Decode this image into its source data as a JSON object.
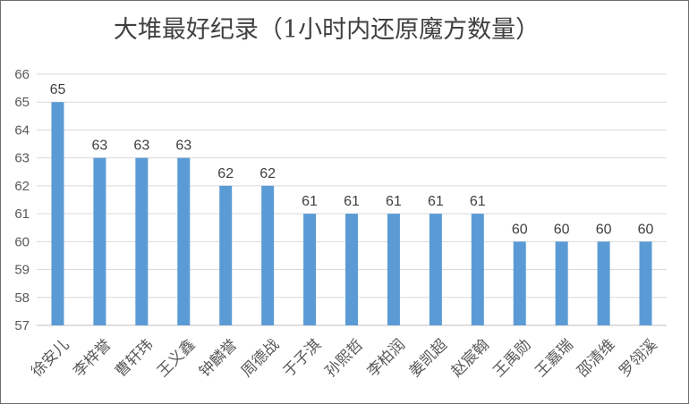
{
  "chart_data": {
    "type": "bar",
    "title": "大堆最好纪录（1小时内还原魔方数量）",
    "xlabel": "",
    "ylabel": "",
    "ylim": [
      57,
      66
    ],
    "yticks": [
      57,
      58,
      59,
      60,
      61,
      62,
      63,
      64,
      65,
      66
    ],
    "grid": true,
    "legend": "none",
    "bar_color": "#5b9bd5",
    "categories": [
      "徐安儿",
      "李梓誉",
      "曹轩玮",
      "王义鑫",
      "钟麟誉",
      "周德战",
      "于子淇",
      "孙熙哲",
      "李柏润",
      "姜凯超",
      "赵宸翰",
      "王禹勋",
      "王嘉瑞",
      "邵清维",
      "罗翎溪"
    ],
    "values": [
      65,
      63,
      63,
      63,
      62,
      62,
      61,
      61,
      61,
      61,
      61,
      60,
      60,
      60,
      60
    ],
    "data_labels": [
      "65",
      "63",
      "63",
      "63",
      "62",
      "62",
      "61",
      "61",
      "61",
      "61",
      "61",
      "60",
      "60",
      "60",
      "60"
    ]
  }
}
